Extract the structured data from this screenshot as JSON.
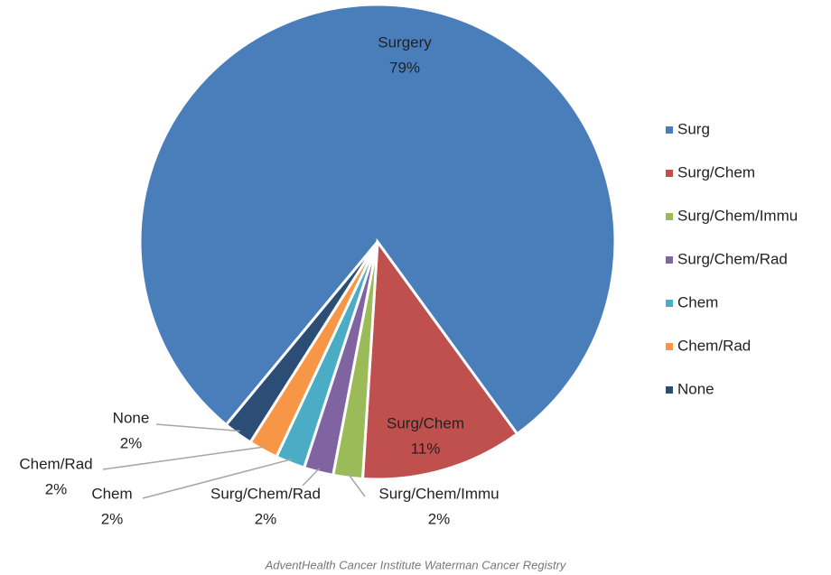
{
  "chart_data": {
    "type": "pie",
    "categories": [
      "Surg",
      "Surg/Chem",
      "Surg/Chem/Immu",
      "Surg/Chem/Rad",
      "Chem",
      "Chem/Rad",
      "None"
    ],
    "slice_labels": [
      "Surgery",
      "Surg/Chem",
      "Surg/Chem/Immu",
      "Surg/Chem/Rad",
      "Chem",
      "Chem/Rad",
      "None"
    ],
    "values": [
      79,
      11,
      2,
      2,
      2,
      2,
      2
    ],
    "value_labels": [
      "79%",
      "11%",
      "2%",
      "2%",
      "2%",
      "2%",
      "2%"
    ],
    "colors": [
      "#4a7ebb",
      "#c0504d",
      "#9bbb59",
      "#8064a2",
      "#4bacc6",
      "#f79646",
      "#2c4d75"
    ],
    "legend": "right",
    "source": "AdventHealth Cancer Institute Waterman Cancer Registry"
  }
}
